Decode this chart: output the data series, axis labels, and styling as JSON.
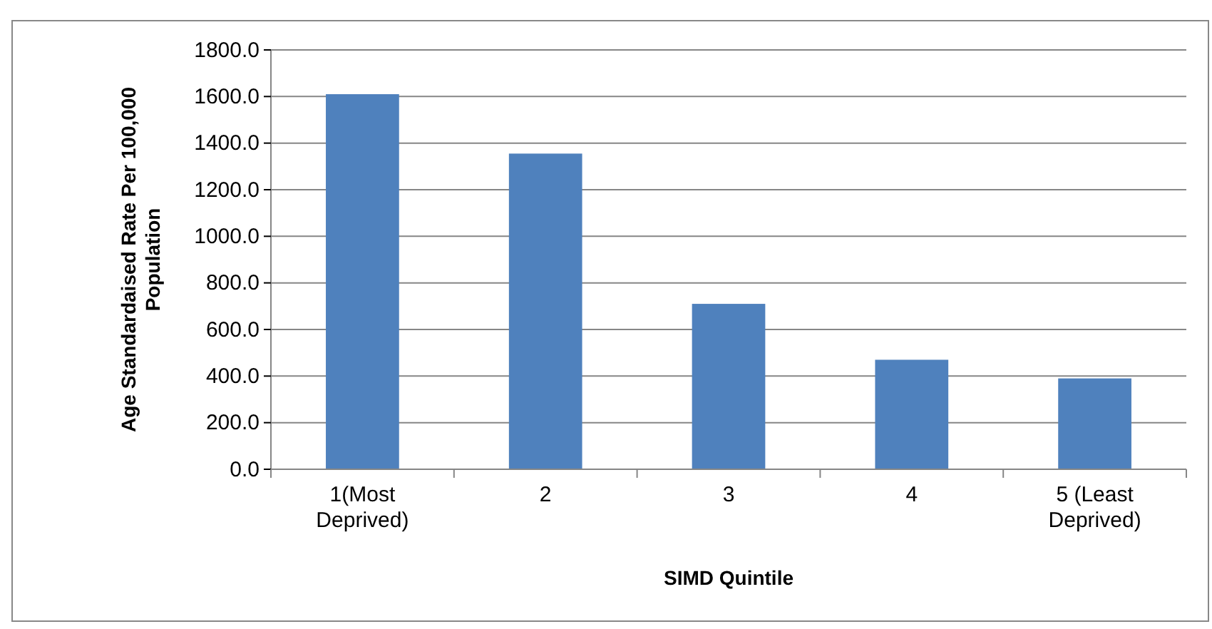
{
  "chart_data": {
    "type": "bar",
    "xlabel": "SIMD Quintile",
    "ylabel": "Age Standardaised  Rate  Per 100,000 Population",
    "categories": [
      "1(Most Deprived)",
      "2",
      "3",
      "4",
      "5 (Least Deprived)"
    ],
    "values": [
      1610,
      1355,
      710,
      470,
      390
    ],
    "color": "#4f81bd",
    "ylim": [
      0,
      1800
    ],
    "yticks": [
      {
        "value": 0,
        "label": "0.0"
      },
      {
        "value": 200,
        "label": "200.0"
      },
      {
        "value": 400,
        "label": "400.0"
      },
      {
        "value": 600,
        "label": "600.0"
      },
      {
        "value": 800,
        "label": "800.0"
      },
      {
        "value": 1000,
        "label": "1000.0"
      },
      {
        "value": 1200,
        "label": "1200.0"
      },
      {
        "value": 1400,
        "label": "1400.0"
      },
      {
        "value": 1600,
        "label": "1600.0"
      },
      {
        "value": 1800,
        "label": "1800.0"
      }
    ],
    "grid": "y"
  }
}
